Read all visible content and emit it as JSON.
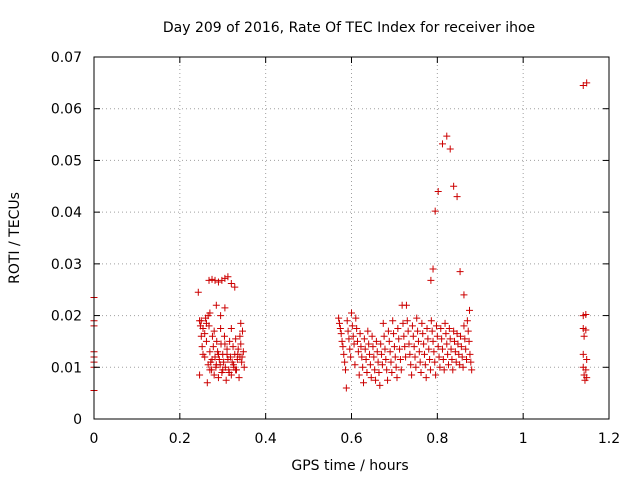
{
  "chart_data": {
    "type": "scatter",
    "title": "Day 209 of 2016, Rate Of TEC Index for receiver ihoe",
    "xlabel": "GPS time / hours",
    "ylabel": "ROTI / TECUs",
    "xlim": [
      0,
      1.2
    ],
    "ylim": [
      0,
      0.07
    ],
    "grid": true,
    "marker": "+",
    "colors": {
      "points": "#cc0000",
      "grid": "#a0a0a0",
      "axes": "#000000"
    },
    "xticks": [
      0,
      0.2,
      0.4,
      0.6,
      0.8,
      1.0,
      1.2
    ],
    "xtick_labels": [
      "0",
      "0.2",
      "0.4",
      "0.6",
      "0.8",
      "1",
      "1.2"
    ],
    "yticks": [
      0,
      0.01,
      0.02,
      0.03,
      0.04,
      0.05,
      0.06,
      0.07
    ],
    "ytick_labels": [
      "0",
      "0.01",
      "0.02",
      "0.03",
      "0.04",
      "0.05",
      "0.06",
      "0.07"
    ],
    "series": [
      {
        "points": [
          [
            0.0,
            0.0235
          ],
          [
            0.0,
            0.019
          ],
          [
            0.0,
            0.018
          ],
          [
            0.0,
            0.013
          ],
          [
            0.0,
            0.012
          ],
          [
            0.0,
            0.011
          ],
          [
            0.0,
            0.01
          ],
          [
            0.0,
            0.0055
          ],
          [
            0.243,
            0.0245
          ],
          [
            0.246,
            0.019
          ],
          [
            0.248,
            0.018
          ],
          [
            0.25,
            0.016
          ],
          [
            0.252,
            0.014
          ],
          [
            0.254,
            0.0125
          ],
          [
            0.246,
            0.0085
          ],
          [
            0.258,
            0.012
          ],
          [
            0.26,
            0.0195
          ],
          [
            0.262,
            0.015
          ],
          [
            0.264,
            0.007
          ],
          [
            0.266,
            0.0105
          ],
          [
            0.268,
            0.018
          ],
          [
            0.27,
            0.013
          ],
          [
            0.272,
            0.011
          ],
          [
            0.274,
            0.0095
          ],
          [
            0.276,
            0.016
          ],
          [
            0.278,
            0.014
          ],
          [
            0.28,
            0.0085
          ],
          [
            0.282,
            0.012
          ],
          [
            0.284,
            0.01
          ],
          [
            0.286,
            0.015
          ],
          [
            0.288,
            0.013
          ],
          [
            0.29,
            0.008
          ],
          [
            0.292,
            0.0115
          ],
          [
            0.294,
            0.0105
          ],
          [
            0.296,
            0.0145
          ],
          [
            0.298,
            0.009
          ],
          [
            0.3,
            0.0125
          ],
          [
            0.302,
            0.011
          ],
          [
            0.304,
            0.016
          ],
          [
            0.306,
            0.01
          ],
          [
            0.308,
            0.0075
          ],
          [
            0.31,
            0.0135
          ],
          [
            0.312,
            0.0115
          ],
          [
            0.314,
            0.0095
          ],
          [
            0.316,
            0.015
          ],
          [
            0.318,
            0.012
          ],
          [
            0.32,
            0.0085
          ],
          [
            0.322,
            0.011
          ],
          [
            0.324,
            0.014
          ],
          [
            0.326,
            0.01
          ],
          [
            0.328,
            0.0125
          ],
          [
            0.33,
            0.0155
          ],
          [
            0.332,
            0.0095
          ],
          [
            0.334,
            0.0115
          ],
          [
            0.336,
            0.0135
          ],
          [
            0.338,
            0.008
          ],
          [
            0.34,
            0.012
          ],
          [
            0.342,
            0.0145
          ],
          [
            0.344,
            0.011
          ],
          [
            0.346,
            0.017
          ],
          [
            0.348,
            0.013
          ],
          [
            0.35,
            0.01
          ],
          [
            0.25,
            0.019
          ],
          [
            0.254,
            0.0175
          ],
          [
            0.258,
            0.0165
          ],
          [
            0.262,
            0.0185
          ],
          [
            0.266,
            0.02
          ],
          [
            0.27,
            0.0095
          ],
          [
            0.275,
            0.0115
          ],
          [
            0.28,
            0.017
          ],
          [
            0.285,
            0.0105
          ],
          [
            0.29,
            0.0125
          ],
          [
            0.295,
            0.0175
          ],
          [
            0.3,
            0.0095
          ],
          [
            0.305,
            0.0145
          ],
          [
            0.31,
            0.0125
          ],
          [
            0.315,
            0.009
          ],
          [
            0.32,
            0.0175
          ],
          [
            0.325,
            0.0105
          ],
          [
            0.33,
            0.0095
          ],
          [
            0.335,
            0.0125
          ],
          [
            0.34,
            0.016
          ],
          [
            0.345,
            0.012
          ],
          [
            0.268,
            0.0268
          ],
          [
            0.275,
            0.027
          ],
          [
            0.282,
            0.0268
          ],
          [
            0.29,
            0.0265
          ],
          [
            0.298,
            0.0268
          ],
          [
            0.305,
            0.0272
          ],
          [
            0.312,
            0.0275
          ],
          [
            0.32,
            0.0262
          ],
          [
            0.328,
            0.0255
          ],
          [
            0.285,
            0.022
          ],
          [
            0.295,
            0.02
          ],
          [
            0.305,
            0.0215
          ],
          [
            0.27,
            0.0205
          ],
          [
            0.342,
            0.0185
          ],
          [
            0.57,
            0.0195
          ],
          [
            0.572,
            0.0185
          ],
          [
            0.574,
            0.0175
          ],
          [
            0.576,
            0.0165
          ],
          [
            0.578,
            0.015
          ],
          [
            0.58,
            0.014
          ],
          [
            0.582,
            0.0125
          ],
          [
            0.584,
            0.011
          ],
          [
            0.586,
            0.0095
          ],
          [
            0.588,
            0.006
          ],
          [
            0.59,
            0.019
          ],
          [
            0.592,
            0.017
          ],
          [
            0.594,
            0.0155
          ],
          [
            0.596,
            0.0135
          ],
          [
            0.598,
            0.012
          ],
          [
            0.6,
            0.0205
          ],
          [
            0.602,
            0.018
          ],
          [
            0.604,
            0.016
          ],
          [
            0.606,
            0.0145
          ],
          [
            0.608,
            0.0105
          ],
          [
            0.61,
            0.0195
          ],
          [
            0.612,
            0.0175
          ],
          [
            0.614,
            0.015
          ],
          [
            0.616,
            0.013
          ],
          [
            0.618,
            0.0085
          ],
          [
            0.62,
            0.0165
          ],
          [
            0.622,
            0.014
          ],
          [
            0.624,
            0.012
          ],
          [
            0.626,
            0.01
          ],
          [
            0.628,
            0.007
          ],
          [
            0.63,
            0.0155
          ],
          [
            0.632,
            0.0135
          ],
          [
            0.634,
            0.0115
          ],
          [
            0.636,
            0.009
          ],
          [
            0.638,
            0.017
          ],
          [
            0.64,
            0.0145
          ],
          [
            0.642,
            0.0125
          ],
          [
            0.644,
            0.0105
          ],
          [
            0.646,
            0.008
          ],
          [
            0.648,
            0.016
          ],
          [
            0.65,
            0.014
          ],
          [
            0.652,
            0.012
          ],
          [
            0.654,
            0.0095
          ],
          [
            0.656,
            0.0075
          ],
          [
            0.658,
            0.015
          ],
          [
            0.66,
            0.013
          ],
          [
            0.662,
            0.011
          ],
          [
            0.664,
            0.009
          ],
          [
            0.666,
            0.0065
          ],
          [
            0.668,
            0.0145
          ],
          [
            0.67,
            0.0125
          ],
          [
            0.672,
            0.0105
          ],
          [
            0.674,
            0.0185
          ],
          [
            0.676,
            0.016
          ],
          [
            0.678,
            0.0135
          ],
          [
            0.68,
            0.0115
          ],
          [
            0.682,
            0.0095
          ],
          [
            0.684,
            0.0075
          ],
          [
            0.686,
            0.017
          ],
          [
            0.688,
            0.015
          ],
          [
            0.69,
            0.013
          ],
          [
            0.692,
            0.011
          ],
          [
            0.694,
            0.009
          ],
          [
            0.696,
            0.019
          ],
          [
            0.698,
            0.0165
          ],
          [
            0.7,
            0.014
          ],
          [
            0.702,
            0.012
          ],
          [
            0.704,
            0.01
          ],
          [
            0.706,
            0.008
          ],
          [
            0.708,
            0.0175
          ],
          [
            0.71,
            0.0155
          ],
          [
            0.712,
            0.0135
          ],
          [
            0.714,
            0.0115
          ],
          [
            0.716,
            0.0095
          ],
          [
            0.718,
            0.022
          ],
          [
            0.72,
            0.0185
          ],
          [
            0.722,
            0.016
          ],
          [
            0.724,
            0.014
          ],
          [
            0.726,
            0.012
          ],
          [
            0.728,
            0.022
          ],
          [
            0.73,
            0.019
          ],
          [
            0.732,
            0.017
          ],
          [
            0.734,
            0.0145
          ],
          [
            0.736,
            0.0125
          ],
          [
            0.738,
            0.0105
          ],
          [
            0.74,
            0.0085
          ],
          [
            0.742,
            0.018
          ],
          [
            0.744,
            0.016
          ],
          [
            0.746,
            0.014
          ],
          [
            0.748,
            0.012
          ],
          [
            0.75,
            0.01
          ],
          [
            0.752,
            0.0195
          ],
          [
            0.754,
            0.017
          ],
          [
            0.756,
            0.015
          ],
          [
            0.758,
            0.013
          ],
          [
            0.76,
            0.011
          ],
          [
            0.762,
            0.009
          ],
          [
            0.764,
            0.0185
          ],
          [
            0.766,
            0.0165
          ],
          [
            0.768,
            0.0145
          ],
          [
            0.77,
            0.0125
          ],
          [
            0.772,
            0.0105
          ],
          [
            0.774,
            0.008
          ],
          [
            0.776,
            0.0175
          ],
          [
            0.778,
            0.0155
          ],
          [
            0.78,
            0.0135
          ],
          [
            0.782,
            0.0115
          ],
          [
            0.784,
            0.0095
          ],
          [
            0.786,
            0.019
          ],
          [
            0.788,
            0.017
          ],
          [
            0.79,
            0.015
          ],
          [
            0.792,
            0.013
          ],
          [
            0.794,
            0.011
          ],
          [
            0.796,
            0.0085
          ],
          [
            0.798,
            0.018
          ],
          [
            0.8,
            0.016
          ],
          [
            0.802,
            0.014
          ],
          [
            0.804,
            0.012
          ],
          [
            0.806,
            0.01
          ],
          [
            0.808,
            0.0175
          ],
          [
            0.81,
            0.0155
          ],
          [
            0.812,
            0.0135
          ],
          [
            0.814,
            0.0115
          ],
          [
            0.816,
            0.0095
          ],
          [
            0.818,
            0.0185
          ],
          [
            0.82,
            0.0165
          ],
          [
            0.822,
            0.0145
          ],
          [
            0.824,
            0.0125
          ],
          [
            0.826,
            0.0105
          ],
          [
            0.828,
            0.0175
          ],
          [
            0.83,
            0.0155
          ],
          [
            0.832,
            0.0135
          ],
          [
            0.834,
            0.0115
          ],
          [
            0.836,
            0.0095
          ],
          [
            0.838,
            0.017
          ],
          [
            0.84,
            0.015
          ],
          [
            0.842,
            0.013
          ],
          [
            0.844,
            0.011
          ],
          [
            0.846,
            0.0165
          ],
          [
            0.848,
            0.0145
          ],
          [
            0.85,
            0.0125
          ],
          [
            0.852,
            0.0105
          ],
          [
            0.854,
            0.016
          ],
          [
            0.856,
            0.014
          ],
          [
            0.858,
            0.012
          ],
          [
            0.86,
            0.01
          ],
          [
            0.862,
            0.018
          ],
          [
            0.864,
            0.0155
          ],
          [
            0.866,
            0.0135
          ],
          [
            0.868,
            0.0115
          ],
          [
            0.87,
            0.019
          ],
          [
            0.872,
            0.017
          ],
          [
            0.874,
            0.015
          ],
          [
            0.876,
            0.0125
          ],
          [
            0.878,
            0.011
          ],
          [
            0.88,
            0.0095
          ],
          [
            0.79,
            0.029
          ],
          [
            0.785,
            0.0268
          ],
          [
            0.795,
            0.0402
          ],
          [
            0.802,
            0.044
          ],
          [
            0.812,
            0.0532
          ],
          [
            0.822,
            0.0547
          ],
          [
            0.83,
            0.0522
          ],
          [
            0.838,
            0.045
          ],
          [
            0.846,
            0.043
          ],
          [
            0.853,
            0.0285
          ],
          [
            0.862,
            0.024
          ],
          [
            0.875,
            0.021
          ],
          [
            1.14,
            0.0645
          ],
          [
            1.148,
            0.065
          ],
          [
            1.14,
            0.02
          ],
          [
            1.146,
            0.0202
          ],
          [
            1.14,
            0.0175
          ],
          [
            1.146,
            0.0172
          ],
          [
            1.142,
            0.016
          ],
          [
            1.14,
            0.0125
          ],
          [
            1.148,
            0.0115
          ],
          [
            1.14,
            0.01
          ],
          [
            1.146,
            0.0095
          ],
          [
            1.142,
            0.0085
          ],
          [
            1.148,
            0.008
          ],
          [
            1.144,
            0.0075
          ]
        ]
      }
    ]
  }
}
